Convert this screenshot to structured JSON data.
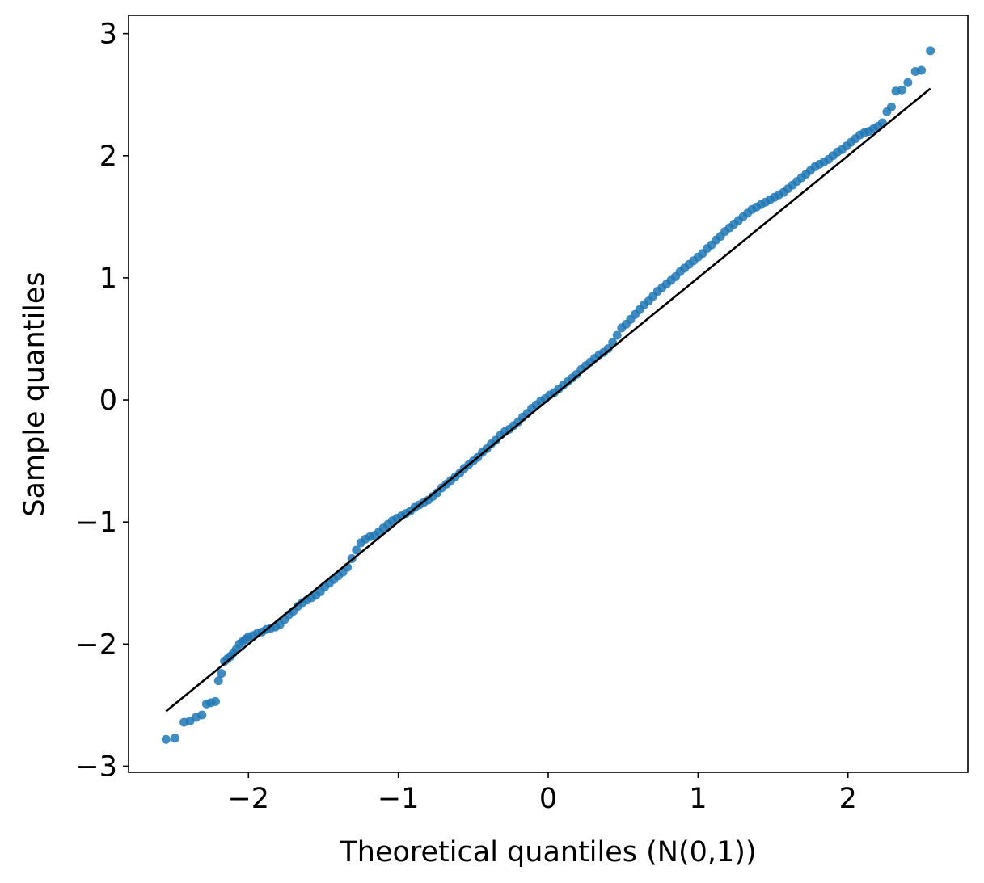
{
  "chart_data": {
    "type": "scatter",
    "title": "",
    "xlabel": "Theoretical quantiles (N(0,1))",
    "ylabel": "Sample quantiles",
    "xlim": [
      -2.8,
      2.8
    ],
    "ylim": [
      -3.05,
      3.15
    ],
    "xticks": [
      -2,
      -1,
      0,
      1,
      2
    ],
    "yticks": [
      -3,
      -2,
      -1,
      0,
      1,
      2,
      3
    ],
    "xtick_labels": [
      "−2",
      "−1",
      "0",
      "1",
      "2"
    ],
    "ytick_labels": [
      "−3",
      "−2",
      "−1",
      "0",
      "1",
      "2",
      "3"
    ],
    "grid": false,
    "point_color": "#1f77b4",
    "line_color": "#000000",
    "reference_line": {
      "x": [
        -2.55,
        2.55
      ],
      "y": [
        -2.55,
        2.55
      ]
    },
    "series": [
      {
        "x": [
          -2.55,
          -2.49,
          -2.43,
          -2.39,
          -2.35,
          -2.31,
          -2.28,
          -2.25,
          -2.22,
          -2.2,
          -2.18,
          -2.16,
          -2.14,
          -2.12,
          -2.1,
          -2.08,
          -2.06,
          -2.04,
          -2.02,
          -2.0,
          -1.97,
          -1.94,
          -1.91,
          -1.88,
          -1.85,
          -1.82,
          -1.79,
          -1.76,
          -1.73,
          -1.7,
          -1.67,
          -1.64,
          -1.61,
          -1.58,
          -1.55,
          -1.52,
          -1.49,
          -1.46,
          -1.43,
          -1.4,
          -1.37,
          -1.34,
          -1.31,
          -1.28,
          -1.25,
          -1.22,
          -1.19,
          -1.16,
          -1.13,
          -1.1,
          -1.07,
          -1.04,
          -1.01,
          -0.98,
          -0.95,
          -0.92,
          -0.89,
          -0.86,
          -0.83,
          -0.8,
          -0.77,
          -0.74,
          -0.71,
          -0.68,
          -0.65,
          -0.62,
          -0.59,
          -0.56,
          -0.53,
          -0.5,
          -0.47,
          -0.44,
          -0.41,
          -0.38,
          -0.35,
          -0.32,
          -0.29,
          -0.26,
          -0.23,
          -0.2,
          -0.17,
          -0.14,
          -0.11,
          -0.08,
          -0.05,
          -0.02,
          0.01,
          0.04,
          0.07,
          0.1,
          0.13,
          0.16,
          0.19,
          0.22,
          0.25,
          0.28,
          0.31,
          0.34,
          0.37,
          0.4,
          0.43,
          0.46,
          0.49,
          0.52,
          0.55,
          0.58,
          0.61,
          0.64,
          0.67,
          0.7,
          0.73,
          0.76,
          0.79,
          0.82,
          0.85,
          0.88,
          0.91,
          0.94,
          0.97,
          1.0,
          1.03,
          1.06,
          1.09,
          1.12,
          1.15,
          1.18,
          1.21,
          1.24,
          1.27,
          1.3,
          1.33,
          1.36,
          1.39,
          1.42,
          1.45,
          1.48,
          1.51,
          1.54,
          1.57,
          1.6,
          1.63,
          1.66,
          1.69,
          1.72,
          1.75,
          1.78,
          1.81,
          1.84,
          1.87,
          1.9,
          1.93,
          1.96,
          1.99,
          2.02,
          2.05,
          2.08,
          2.11,
          2.14,
          2.17,
          2.2,
          2.23,
          2.26,
          2.29,
          2.32,
          2.36,
          2.4,
          2.45,
          2.49,
          2.55
        ],
        "y": [
          -2.78,
          -2.77,
          -2.64,
          -2.63,
          -2.6,
          -2.58,
          -2.49,
          -2.48,
          -2.47,
          -2.3,
          -2.24,
          -2.14,
          -2.12,
          -2.1,
          -2.07,
          -2.04,
          -2.0,
          -1.98,
          -1.96,
          -1.94,
          -1.93,
          -1.91,
          -1.9,
          -1.88,
          -1.87,
          -1.86,
          -1.84,
          -1.8,
          -1.76,
          -1.73,
          -1.69,
          -1.66,
          -1.64,
          -1.62,
          -1.6,
          -1.57,
          -1.53,
          -1.5,
          -1.47,
          -1.44,
          -1.41,
          -1.37,
          -1.3,
          -1.23,
          -1.17,
          -1.14,
          -1.12,
          -1.11,
          -1.08,
          -1.05,
          -1.02,
          -0.99,
          -0.97,
          -0.95,
          -0.93,
          -0.91,
          -0.88,
          -0.86,
          -0.84,
          -0.82,
          -0.79,
          -0.76,
          -0.72,
          -0.69,
          -0.66,
          -0.63,
          -0.6,
          -0.56,
          -0.53,
          -0.5,
          -0.47,
          -0.43,
          -0.4,
          -0.36,
          -0.33,
          -0.29,
          -0.26,
          -0.24,
          -0.21,
          -0.18,
          -0.14,
          -0.11,
          -0.07,
          -0.04,
          -0.01,
          0.01,
          0.04,
          0.06,
          0.09,
          0.12,
          0.15,
          0.18,
          0.21,
          0.25,
          0.28,
          0.31,
          0.34,
          0.37,
          0.39,
          0.42,
          0.47,
          0.53,
          0.59,
          0.62,
          0.66,
          0.7,
          0.74,
          0.78,
          0.81,
          0.85,
          0.89,
          0.92,
          0.95,
          0.98,
          1.01,
          1.05,
          1.08,
          1.11,
          1.14,
          1.17,
          1.2,
          1.24,
          1.27,
          1.31,
          1.34,
          1.38,
          1.41,
          1.44,
          1.47,
          1.5,
          1.53,
          1.56,
          1.58,
          1.6,
          1.62,
          1.64,
          1.66,
          1.68,
          1.7,
          1.73,
          1.76,
          1.79,
          1.82,
          1.85,
          1.88,
          1.91,
          1.93,
          1.95,
          1.97,
          2.0,
          2.03,
          2.05,
          2.08,
          2.11,
          2.14,
          2.17,
          2.19,
          2.2,
          2.22,
          2.24,
          2.27,
          2.36,
          2.4,
          2.53,
          2.54,
          2.6,
          2.69,
          2.7,
          2.86
        ]
      }
    ]
  }
}
